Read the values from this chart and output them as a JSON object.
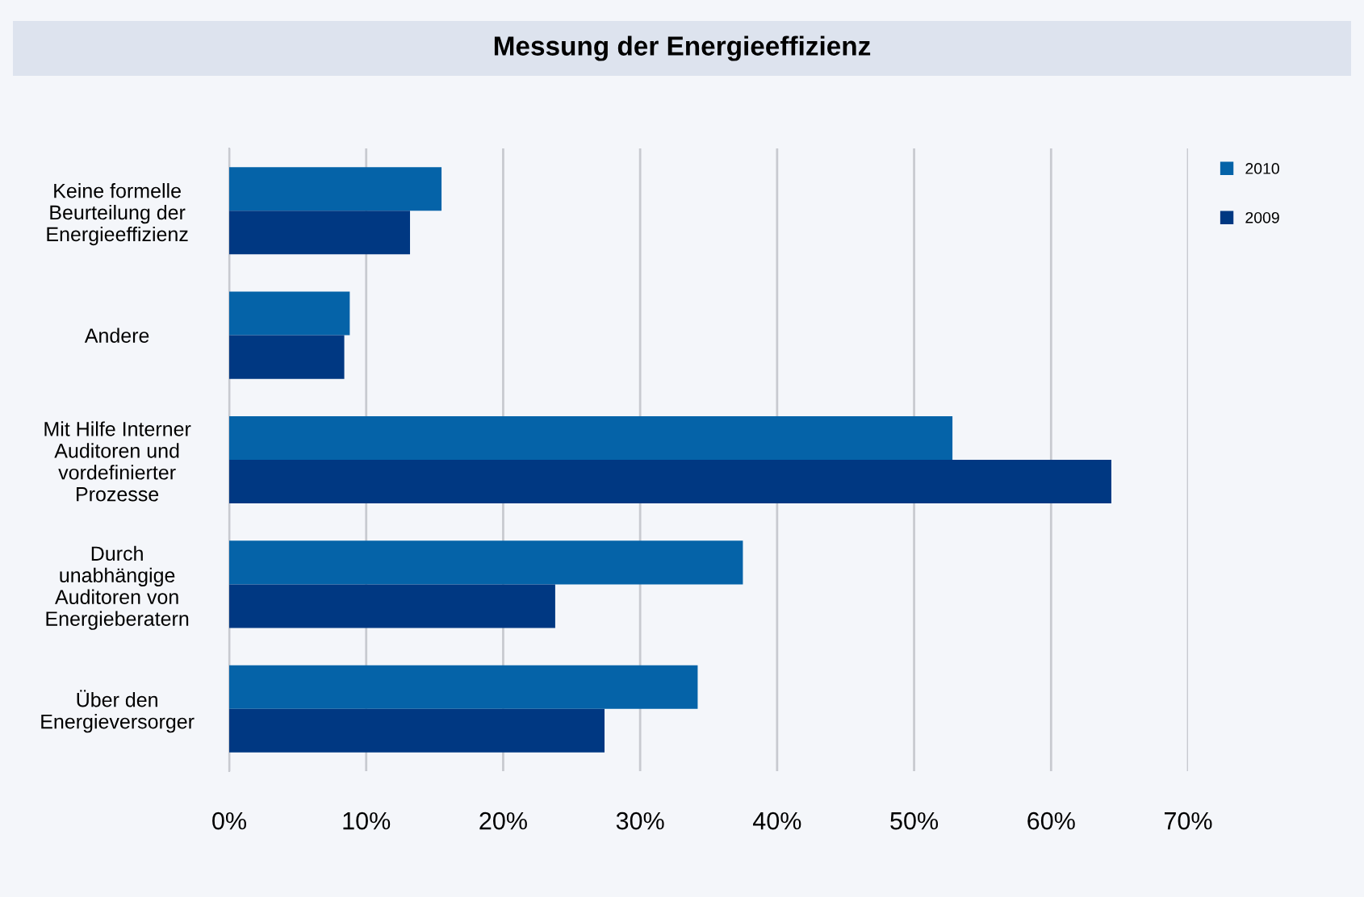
{
  "chart_data": {
    "type": "bar",
    "orientation": "horizontal",
    "title": "Messung der Energieeffizienz",
    "categories": [
      "Keine formelle\nBeurteilung der\nEnergieeffizienz",
      "Andere",
      "Mit Hilfe Interner\nAuditoren und\nvordefinierter\nProzesse",
      "Durch\nunabhängige\nAuditoren von\nEnergieberatern",
      "Über den\nEnergieversorger"
    ],
    "series": [
      {
        "name": "2010",
        "color": "#0563a8",
        "values": [
          15.5,
          8.8,
          52.8,
          37.5,
          34.2
        ]
      },
      {
        "name": "2009",
        "color": "#003882",
        "values": [
          13.2,
          8.4,
          64.4,
          23.8,
          27.4
        ]
      }
    ],
    "xlim": [
      0,
      70
    ],
    "xticks": [
      {
        "value": 0,
        "label": "0%"
      },
      {
        "value": 10,
        "label": "10%"
      },
      {
        "value": 20,
        "label": "20%"
      },
      {
        "value": 30,
        "label": "30%"
      },
      {
        "value": 40,
        "label": "40%"
      },
      {
        "value": 50,
        "label": "50%"
      },
      {
        "value": 60,
        "label": "60%"
      },
      {
        "value": 70,
        "label": "70%"
      }
    ],
    "grid": "x",
    "legend": "top right"
  }
}
